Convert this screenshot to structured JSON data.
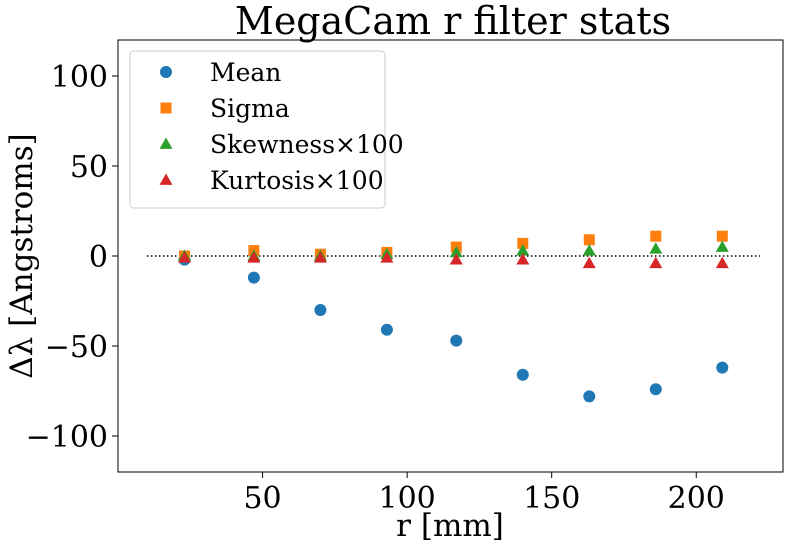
{
  "chart_data": {
    "type": "scatter",
    "title": "MegaCam r filter stats",
    "xlabel": "r [mm]",
    "ylabel": "Δλ [Angstroms]",
    "xlim": [
      0,
      230
    ],
    "ylim": [
      -120,
      120
    ],
    "xticks": [
      50,
      100,
      150,
      200
    ],
    "xtick_labels": [
      "50",
      "100",
      "150",
      "200"
    ],
    "yticks": [
      100,
      50,
      0,
      -50,
      -100
    ],
    "ytick_labels": [
      "100",
      "50",
      "0",
      "−50",
      "−100"
    ],
    "grid": false,
    "legend_position": "upper-left",
    "reference_line": {
      "y": 0,
      "x_range": [
        10,
        222
      ],
      "style": "dotted",
      "color": "#000000"
    },
    "x": [
      23,
      47,
      70,
      93,
      117,
      140,
      163,
      186,
      209
    ],
    "series": [
      {
        "name": "Mean",
        "marker": "circle",
        "color": "#1f77b4",
        "values": [
          -2,
          -12,
          -30,
          -41,
          -47,
          -66,
          -78,
          -74,
          -62
        ]
      },
      {
        "name": "Sigma",
        "marker": "square",
        "color": "#ff7f0e",
        "values": [
          0,
          3,
          1,
          2,
          5,
          7,
          9,
          11,
          11
        ]
      },
      {
        "name": "Skewness×100",
        "marker": "triangle",
        "color": "#2ca02c",
        "values": [
          0,
          0,
          0,
          1,
          2,
          3,
          3,
          4,
          5
        ]
      },
      {
        "name": "Kurtosis×100",
        "marker": "triangle",
        "color": "#d62728",
        "values": [
          -1,
          -1,
          -1,
          -1,
          -2,
          -2,
          -4,
          -4,
          -4
        ]
      }
    ]
  }
}
